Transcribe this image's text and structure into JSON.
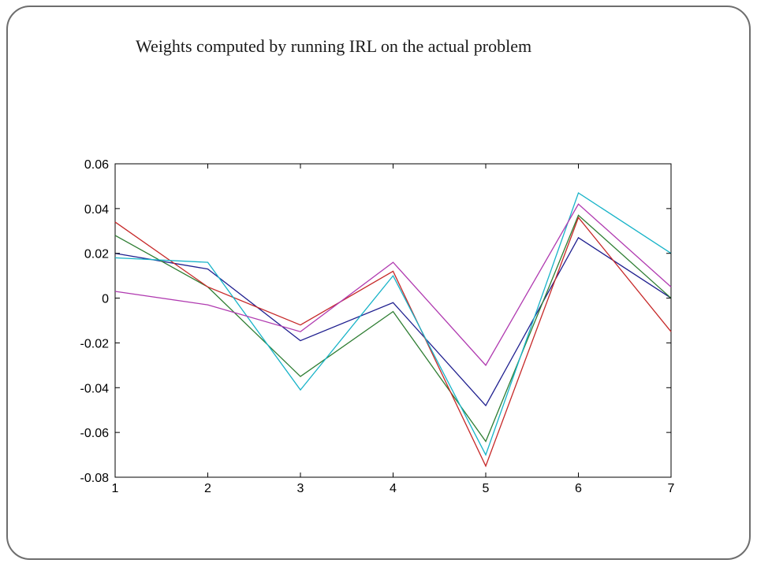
{
  "slide": {
    "title": "Weights computed by running IRL on the actual problem"
  },
  "chart_data": {
    "type": "line",
    "title": "",
    "xlabel": "",
    "ylabel": "",
    "x": [
      1,
      2,
      3,
      4,
      5,
      6,
      7
    ],
    "xlim": [
      1,
      7
    ],
    "ylim": [
      -0.08,
      0.06
    ],
    "x_ticks": [
      "1",
      "2",
      "3",
      "4",
      "5",
      "6",
      "7"
    ],
    "y_ticks": [
      "0.06",
      "0.04",
      "0.02",
      "0",
      "-0.02",
      "-0.04",
      "-0.06",
      "-0.08"
    ],
    "y_tick_values": [
      0.06,
      0.04,
      0.02,
      0,
      -0.02,
      -0.04,
      -0.06,
      -0.08
    ],
    "grid": false,
    "legend": "none",
    "series": [
      {
        "color": "#1f1f8f",
        "values": [
          0.02,
          0.013,
          -0.019,
          -0.002,
          -0.048,
          0.027,
          0.0
        ]
      },
      {
        "color": "#2e7d32",
        "values": [
          0.028,
          0.005,
          -0.035,
          -0.006,
          -0.064,
          0.037,
          0.0
        ]
      },
      {
        "color": "#c62828",
        "values": [
          0.034,
          0.005,
          -0.012,
          0.012,
          -0.075,
          0.036,
          -0.015
        ]
      },
      {
        "color": "#17b3c8",
        "values": [
          0.018,
          0.016,
          -0.041,
          0.01,
          -0.07,
          0.047,
          0.02
        ]
      },
      {
        "color": "#b03ab0",
        "values": [
          0.003,
          -0.003,
          -0.015,
          0.016,
          -0.03,
          0.042,
          0.005
        ]
      }
    ]
  }
}
